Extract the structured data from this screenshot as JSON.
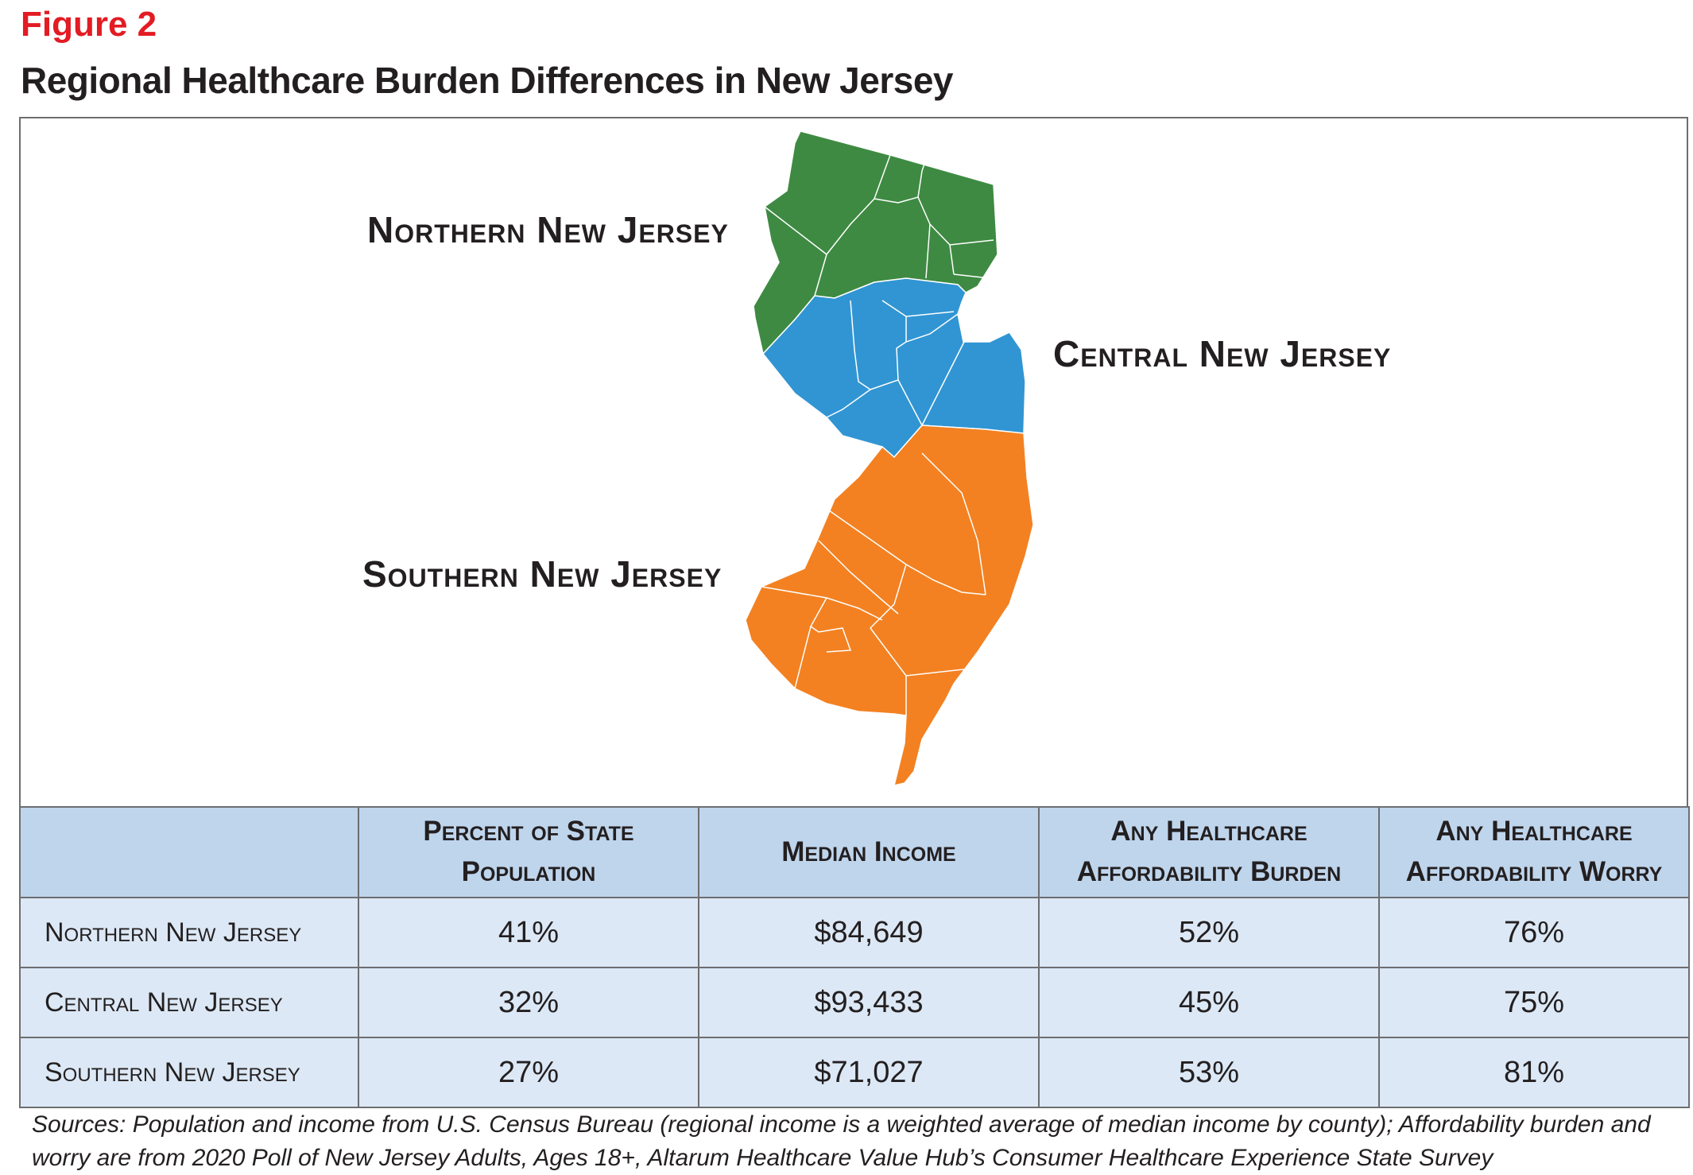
{
  "figure_label": "Figure 2",
  "title": "Regional Healthcare Burden Differences in New Jersey",
  "map": {
    "regions": [
      {
        "label": "Northern New Jersey",
        "color": "#3e8a42"
      },
      {
        "label": "Central New Jersey",
        "color": "#3195d3"
      },
      {
        "label": "Southern New Jersey",
        "color": "#f38121"
      }
    ],
    "border_color": "#ffffff"
  },
  "table": {
    "headers": [
      "",
      "Percent of State Population",
      "Median Income",
      "Any Healthcare Affordability Burden",
      "Any Healthcare Affordability Worry"
    ],
    "rows": [
      {
        "region": "Northern New Jersey",
        "population": "41%",
        "income": "$84,649",
        "burden": "52%",
        "worry": "76%"
      },
      {
        "region": "Central New Jersey",
        "population": "32%",
        "income": "$93,433",
        "burden": "45%",
        "worry": "75%"
      },
      {
        "region": "Southern New Jersey",
        "population": "27%",
        "income": "$71,027",
        "burden": "53%",
        "worry": "81%"
      }
    ]
  },
  "sources": "Sources: Population and income from U.S. Census Bureau (regional income is a weighted average of median income by county); Affordability burden and worry are from 2020 Poll of New Jersey Adults, Ages 18+, Altarum Healthcare Value Hub’s Consumer Healthcare Experience State Survey",
  "colors": {
    "accent": "#e31b23",
    "header_bg": "#bfd5ec",
    "row_bg": "#dce8f5",
    "border": "#6d6e71"
  }
}
